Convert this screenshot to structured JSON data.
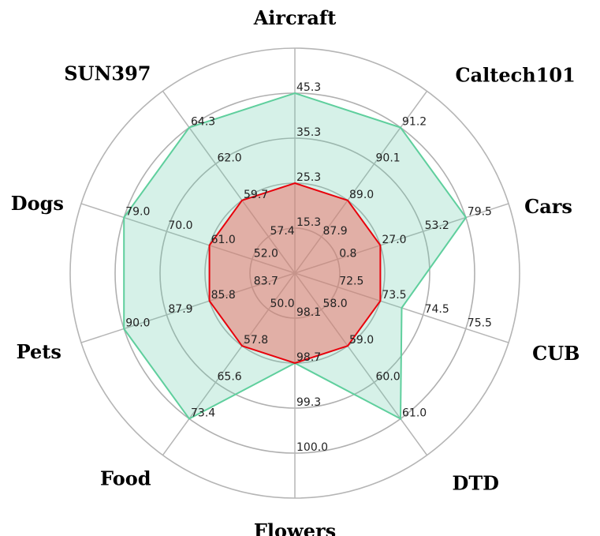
{
  "chart_data": {
    "type": "radar",
    "categories": [
      "Aircraft",
      "Caltech101",
      "Cars",
      "CUB",
      "DTD",
      "Flowers",
      "Food",
      "Pets",
      "Dogs",
      "SUN397"
    ],
    "ring_tick_labels": [
      [
        "15.3",
        "25.3",
        "35.3",
        "45.3"
      ],
      [
        "87.9",
        "89.0",
        "90.1",
        "91.2"
      ],
      [
        "0.8",
        "27.0",
        "53.2",
        "79.5"
      ],
      [
        "72.5",
        "73.5",
        "74.5",
        "75.5"
      ],
      [
        "58.0",
        "59.0",
        "60.0",
        "61.0"
      ],
      [
        "98.1",
        "98.7",
        "99.3",
        "100.0"
      ],
      [
        "50.0",
        "57.8",
        "65.6",
        "73.4"
      ],
      [
        "83.7",
        "85.8",
        "87.9",
        "90.0"
      ],
      [
        "52.0",
        "61.0",
        "70.0",
        "79.0"
      ],
      [
        "57.4",
        "59.7",
        "62.0",
        "64.3"
      ]
    ],
    "series": [
      {
        "values": [
          45.3,
          91.2,
          79.5,
          74.0,
          61.0,
          98.7,
          73.4,
          90.0,
          79.0,
          64.3
        ],
        "color": "#5fcf9d"
      },
      {
        "values": [
          25.3,
          89.0,
          27.0,
          73.5,
          59.0,
          98.7,
          57.8,
          85.8,
          61.0,
          59.7
        ],
        "color": "#e8000b"
      }
    ],
    "grid": true
  }
}
